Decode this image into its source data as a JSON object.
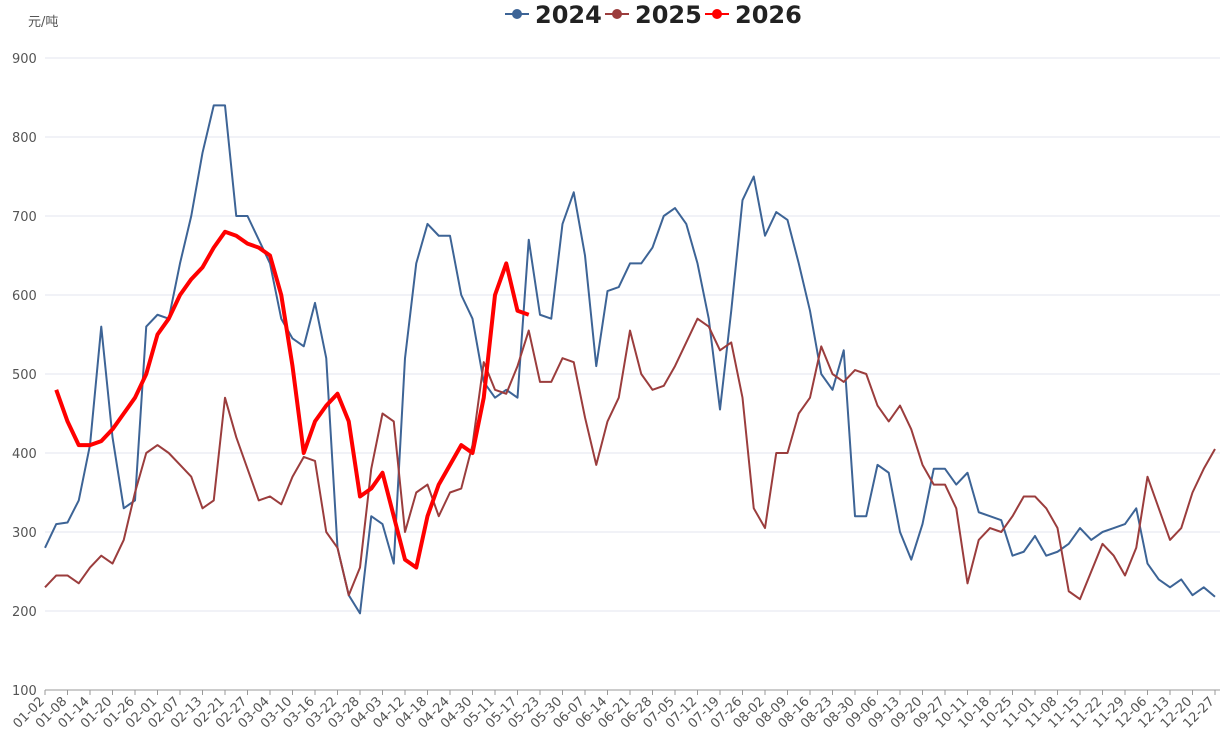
{
  "chart_data": {
    "type": "line",
    "y_unit": "元/吨",
    "categories": [
      "01-02",
      null,
      "01-08",
      null,
      "01-14",
      null,
      "01-20",
      null,
      "01-26",
      null,
      "02-01",
      null,
      "02-07",
      null,
      "02-13",
      null,
      "02-21",
      null,
      "02-27",
      null,
      "03-04",
      null,
      "03-10",
      null,
      "03-16",
      null,
      "03-22",
      null,
      "03-28",
      null,
      "04-03",
      null,
      "04-12",
      null,
      "04-18",
      null,
      "04-24",
      null,
      "04-30",
      null,
      "05-11",
      null,
      "05-17",
      null,
      "05-23",
      null,
      "05-30",
      null,
      "06-07",
      null,
      "06-14",
      null,
      "06-21",
      null,
      "06-28",
      null,
      "07-05",
      null,
      "07-12",
      null,
      "07-19",
      null,
      "07-26",
      null,
      "08-02",
      null,
      "08-09",
      null,
      "08-16",
      null,
      "08-23",
      null,
      "08-30",
      null,
      "09-06",
      null,
      "09-13",
      null,
      "09-20",
      null,
      "09-27",
      null,
      "10-11",
      null,
      "10-18",
      null,
      "10-25",
      null,
      "11-01",
      null,
      "11-08",
      null,
      "11-15",
      null,
      "11-22",
      null,
      "11-29",
      null,
      "12-06",
      null,
      "12-13",
      null,
      "12-20",
      null,
      "12-27"
    ],
    "series": [
      {
        "name": "2024",
        "color": "#3d6496",
        "width": 2,
        "values": [
          280,
          310,
          312,
          340,
          410,
          560,
          420,
          330,
          340,
          560,
          575,
          570,
          640,
          700,
          780,
          840,
          840,
          700,
          700,
          670,
          640,
          570,
          545,
          535,
          590,
          520,
          280,
          220,
          197,
          320,
          310,
          260,
          520,
          640,
          690,
          675,
          675,
          600,
          570,
          490,
          470,
          480,
          470,
          670,
          575,
          570,
          690,
          730,
          650,
          510,
          605,
          610,
          640,
          640,
          660,
          700,
          710,
          690,
          640,
          570,
          455,
          580,
          720,
          750,
          675,
          705,
          695,
          640,
          580,
          500,
          480,
          530,
          320,
          320,
          385,
          375,
          300,
          265,
          310,
          380,
          380,
          360,
          375,
          325,
          320,
          315,
          270,
          275,
          295,
          270,
          275,
          285,
          305,
          290,
          300,
          305,
          310,
          330,
          260,
          240,
          230,
          240,
          220,
          230,
          218
        ]
      },
      {
        "name": "2025",
        "color": "#9b3d3d",
        "width": 2,
        "values": [
          230,
          245,
          245,
          235,
          255,
          270,
          260,
          290,
          350,
          400,
          410,
          400,
          385,
          370,
          330,
          340,
          470,
          420,
          380,
          340,
          345,
          335,
          370,
          395,
          390,
          300,
          280,
          220,
          255,
          380,
          450,
          440,
          300,
          350,
          360,
          320,
          350,
          355,
          410,
          515,
          480,
          475,
          510,
          555,
          490,
          490,
          520,
          515,
          445,
          385,
          440,
          470,
          555,
          500,
          480,
          485,
          510,
          540,
          570,
          560,
          530,
          540,
          470,
          330,
          305,
          400,
          400,
          450,
          470,
          535,
          500,
          490,
          505,
          500,
          460,
          440,
          460,
          430,
          385,
          360,
          360,
          330,
          235,
          290,
          305,
          300,
          320,
          345,
          345,
          330,
          305,
          225,
          215,
          250,
          285,
          270,
          245,
          280,
          370,
          330,
          290,
          305,
          350,
          380,
          405
        ]
      },
      {
        "name": "2026",
        "color": "#ff0000",
        "width": 4,
        "values": [
          null,
          480,
          440,
          410,
          410,
          415,
          430,
          450,
          470,
          500,
          550,
          570,
          600,
          620,
          635,
          660,
          680,
          675,
          665,
          660,
          650,
          600,
          510,
          400,
          440,
          460,
          475,
          440,
          345,
          355,
          375,
          320,
          265,
          255,
          320,
          360,
          385,
          410,
          400,
          470,
          600,
          640,
          580,
          575,
          null,
          null,
          null,
          null,
          null,
          null,
          null,
          null,
          null,
          null,
          null,
          null,
          null,
          null,
          null,
          null,
          null,
          null,
          null,
          null,
          null,
          null,
          null,
          null,
          null,
          null,
          null,
          null,
          null,
          null,
          null,
          null,
          null,
          null,
          null,
          null,
          null,
          null,
          null,
          null,
          null,
          null,
          null,
          null,
          null,
          null,
          null,
          null,
          null,
          null,
          null,
          null,
          null,
          null,
          null,
          null,
          null,
          null,
          null,
          null,
          null
        ]
      }
    ],
    "ylim": [
      100,
      900
    ],
    "yticks": [
      100,
      200,
      300,
      400,
      500,
      600,
      700,
      800,
      900
    ],
    "grid": true
  }
}
